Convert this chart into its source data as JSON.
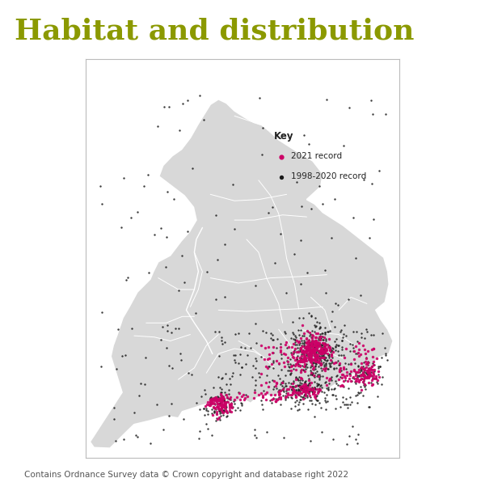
{
  "title": "Habitat and distribution",
  "title_color": "#8B9900",
  "title_fontsize": 26,
  "title_weight": "bold",
  "background_color": "#FFFFFF",
  "map_face_color": "#D8D8D8",
  "map_edge_color": "#FFFFFF",
  "border_color": "#CCCCCC",
  "map_bg_color": "#FFFFFF",
  "footer_text": "Contains Ordnance Survey data © Crown copyright and database right 2022",
  "footer_fontsize": 7.5,
  "key_title": "Key",
  "key_2021_label": "2021 record",
  "key_1998_label": "1998-2020 record",
  "dot_color_2021": "#CC0066",
  "dot_color_1998": "#1A1A1A",
  "dot_size_2021": 6,
  "dot_size_1998": 3,
  "lon_min": -5.8,
  "lon_max": 2.0,
  "lat_min": 49.8,
  "lat_max": 56.0
}
